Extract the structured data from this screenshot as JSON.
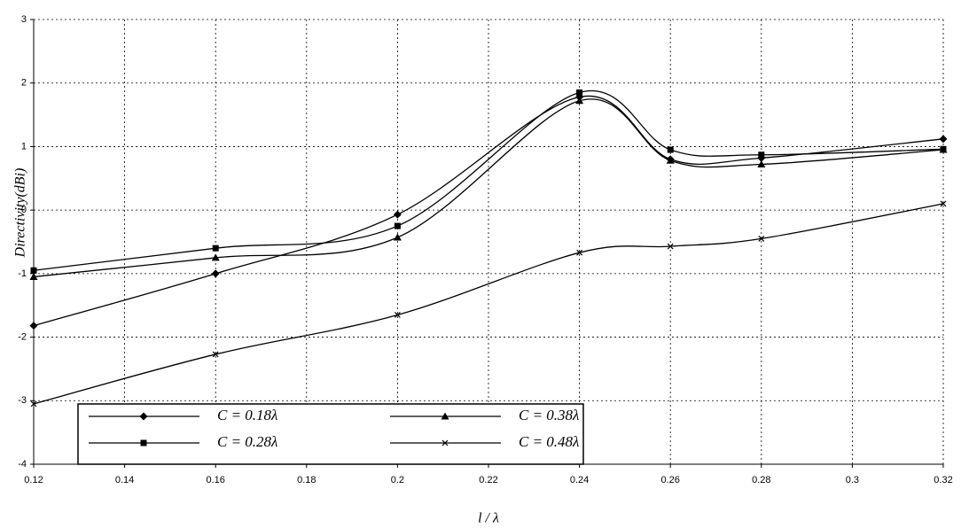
{
  "chart_data": {
    "type": "line",
    "x_label": "l / λ",
    "y_label": "Directivity(dBi)",
    "x": [
      0.12,
      0.16,
      0.2,
      0.24,
      0.26,
      0.28,
      0.32
    ],
    "series": [
      {
        "name": "C = 0.18λ",
        "color": "#000000",
        "marker": "diamond",
        "values": [
          -1.82,
          -1.0,
          -0.07,
          1.78,
          0.8,
          0.82,
          1.12
        ]
      },
      {
        "name": "C = 0.28λ",
        "color": "#000000",
        "marker": "square",
        "values": [
          -0.95,
          -0.6,
          -0.25,
          1.85,
          0.95,
          0.87,
          0.96
        ]
      },
      {
        "name": "C = 0.38λ",
        "color": "#000000",
        "marker": "triangle",
        "values": [
          -1.05,
          -0.75,
          -0.43,
          1.72,
          0.78,
          0.72,
          0.95
        ]
      },
      {
        "name": "C = 0.48λ",
        "color": "#000000",
        "marker": "x",
        "values": [
          -3.05,
          -2.27,
          -1.65,
          -0.67,
          -0.57,
          -0.45,
          0.1
        ]
      }
    ],
    "xlim": [
      0.12,
      0.32
    ],
    "xticks": [
      0.12,
      0.14,
      0.16,
      0.18,
      0.2,
      0.22,
      0.24,
      0.26,
      0.28,
      0.3,
      0.32
    ],
    "ylim": [
      -4,
      3
    ],
    "yticks": [
      -4,
      -3,
      -2,
      -1,
      0,
      1,
      2,
      3
    ],
    "grid": true,
    "legend": "lower left"
  }
}
